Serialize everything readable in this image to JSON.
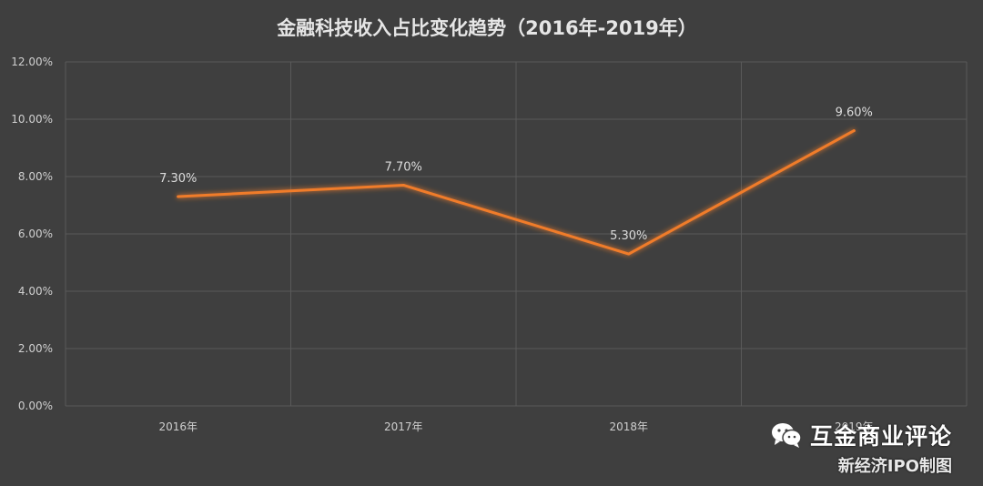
{
  "chart_data": {
    "type": "line",
    "title": "金融科技收入占比变化趋势（2016年-2019年）",
    "categories": [
      "2016年",
      "2017年",
      "2018年",
      "2019年"
    ],
    "series": [
      {
        "values": [
          7.3,
          7.7,
          5.3,
          9.6
        ]
      }
    ],
    "data_labels": [
      "7.30%",
      "7.70%",
      "5.30%",
      "9.60%"
    ],
    "y_ticks": [
      "0.00%",
      "2.00%",
      "4.00%",
      "6.00%",
      "8.00%",
      "10.00%",
      "12.00%"
    ],
    "ylim": [
      0,
      12
    ],
    "grid": true,
    "line_color": "#f07c2a"
  },
  "watermark": {
    "brand": "互金商业评论",
    "subtitle": "新经济IPO制图",
    "icon": "wechat-icon"
  }
}
